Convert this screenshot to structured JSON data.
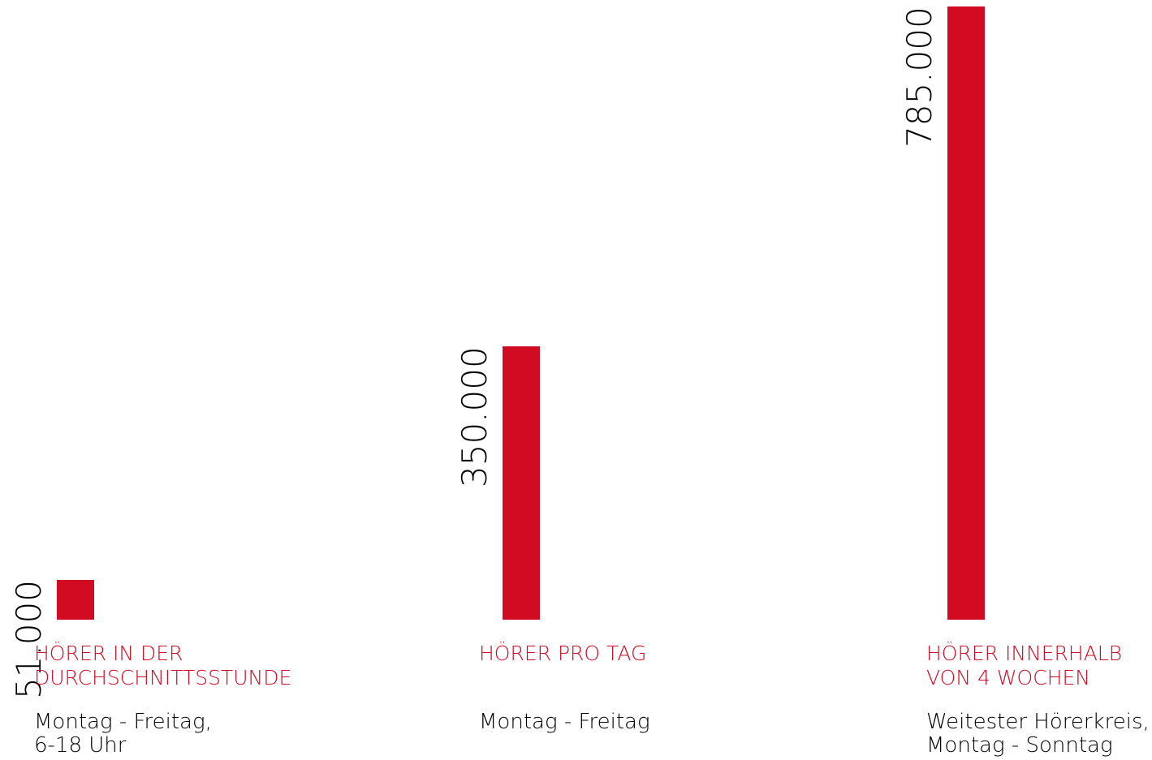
{
  "colors": {
    "bar": "#d20a22",
    "title": "#d20a22",
    "text": "#000000",
    "background": "#ffffff"
  },
  "chart_data": {
    "type": "bar",
    "categories": [
      "HÖRER IN DER DURCHSCHNITTSSTUNDE",
      "HÖRER PRO TAG",
      "HÖRER INNERHALB VON 4 WOCHEN"
    ],
    "values": [
      51000,
      350000,
      785000
    ],
    "value_labels": [
      "51.000",
      "350.000",
      "785.000"
    ],
    "title": "",
    "xlabel": "",
    "ylabel": "",
    "ylim": [
      0,
      785000
    ],
    "grid": false,
    "legend": "none"
  },
  "items": [
    {
      "title_lines": [
        "HÖRER IN DER",
        "DURCHSCHNITTSSTUNDE"
      ],
      "subtitle_lines": [
        "Montag - Freitag,",
        "6-18 Uhr"
      ]
    },
    {
      "title_lines": [
        "HÖRER PRO TAG"
      ],
      "subtitle_lines": [
        "Montag - Freitag"
      ]
    },
    {
      "title_lines": [
        "HÖRER INNERHALB",
        "VON 4 WOCHEN"
      ],
      "subtitle_lines": [
        "Weitester Hörerkreis,",
        "Montag - Sonntag"
      ]
    }
  ]
}
